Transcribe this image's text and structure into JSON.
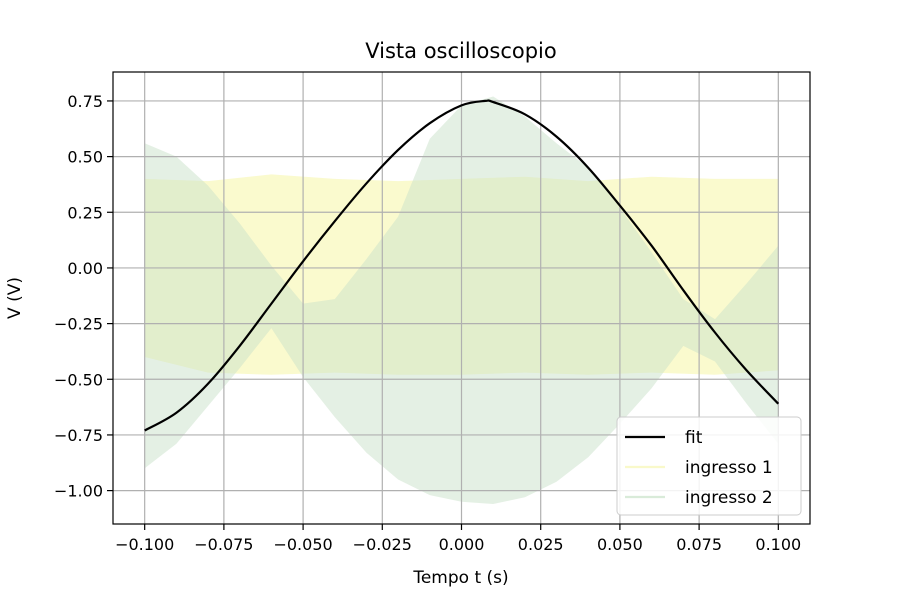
{
  "chart_data": {
    "type": "line",
    "title": "Vista oscilloscopio",
    "xlabel": "Tempo t (s)",
    "ylabel": "V (V)",
    "xlim": [
      -0.11,
      0.11
    ],
    "ylim": [
      -1.15,
      0.88
    ],
    "grid": true,
    "legend_position": "lower-right",
    "x_ticks": [
      -0.1,
      -0.075,
      -0.05,
      -0.025,
      0.0,
      0.025,
      0.05,
      0.075,
      0.1
    ],
    "x_tick_labels": [
      "−0.100",
      "−0.075",
      "−0.050",
      "−0.025",
      "0.000",
      "0.025",
      "0.050",
      "0.075",
      "0.100"
    ],
    "y_ticks": [
      0.75,
      0.5,
      0.25,
      0.0,
      -0.25,
      -0.5,
      -0.75,
      -1.0
    ],
    "y_tick_labels": [
      "0.75",
      "0.50",
      "0.25",
      "0.00",
      "−0.25",
      "−0.50",
      "−0.75",
      "−1.00"
    ],
    "series": [
      {
        "name": "fit",
        "style": "line",
        "color": "#000000",
        "x": [
          -0.1,
          -0.09,
          -0.08,
          -0.07,
          -0.06,
          -0.05,
          -0.04,
          -0.03,
          -0.02,
          -0.01,
          0.0,
          0.0075,
          0.01,
          0.02,
          0.03,
          0.04,
          0.05,
          0.06,
          0.07,
          0.08,
          0.09,
          0.1
        ],
        "y": [
          -0.73,
          -0.65,
          -0.52,
          -0.35,
          -0.16,
          0.03,
          0.21,
          0.38,
          0.53,
          0.65,
          0.73,
          0.75,
          0.745,
          0.69,
          0.59,
          0.45,
          0.28,
          0.1,
          -0.1,
          -0.29,
          -0.46,
          -0.61
        ]
      },
      {
        "name": "ingresso 1",
        "style": "band",
        "color": "#f7f7b4",
        "x": [
          -0.1,
          -0.08,
          -0.06,
          -0.04,
          -0.02,
          0.0,
          0.02,
          0.04,
          0.06,
          0.08,
          0.1
        ],
        "y_upper": [
          0.4,
          0.39,
          0.42,
          0.4,
          0.39,
          0.4,
          0.41,
          0.39,
          0.41,
          0.4,
          0.4
        ],
        "y_lower": [
          -0.4,
          -0.47,
          -0.48,
          -0.47,
          -0.48,
          -0.48,
          -0.47,
          -0.48,
          -0.47,
          -0.48,
          -0.46
        ]
      },
      {
        "name": "ingresso 2",
        "style": "band",
        "color": "#c9e2c9",
        "x": [
          -0.1,
          -0.09,
          -0.08,
          -0.07,
          -0.06,
          -0.05,
          -0.04,
          -0.03,
          -0.02,
          -0.01,
          0.0,
          0.01,
          0.02,
          0.03,
          0.04,
          0.05,
          0.06,
          0.07,
          0.08,
          0.09,
          0.1
        ],
        "y_upper": [
          0.56,
          0.5,
          0.37,
          0.2,
          0.01,
          -0.16,
          -0.14,
          0.04,
          0.23,
          0.58,
          0.73,
          0.77,
          0.68,
          0.56,
          0.45,
          0.27,
          0.07,
          -0.14,
          -0.23,
          -0.07,
          0.1
        ],
        "y_lower": [
          -0.9,
          -0.79,
          -0.62,
          -0.45,
          -0.27,
          -0.49,
          -0.67,
          -0.83,
          -0.95,
          -1.02,
          -1.05,
          -1.06,
          -1.03,
          -0.96,
          -0.85,
          -0.7,
          -0.54,
          -0.35,
          -0.42,
          -0.61,
          -0.79
        ]
      }
    ]
  }
}
